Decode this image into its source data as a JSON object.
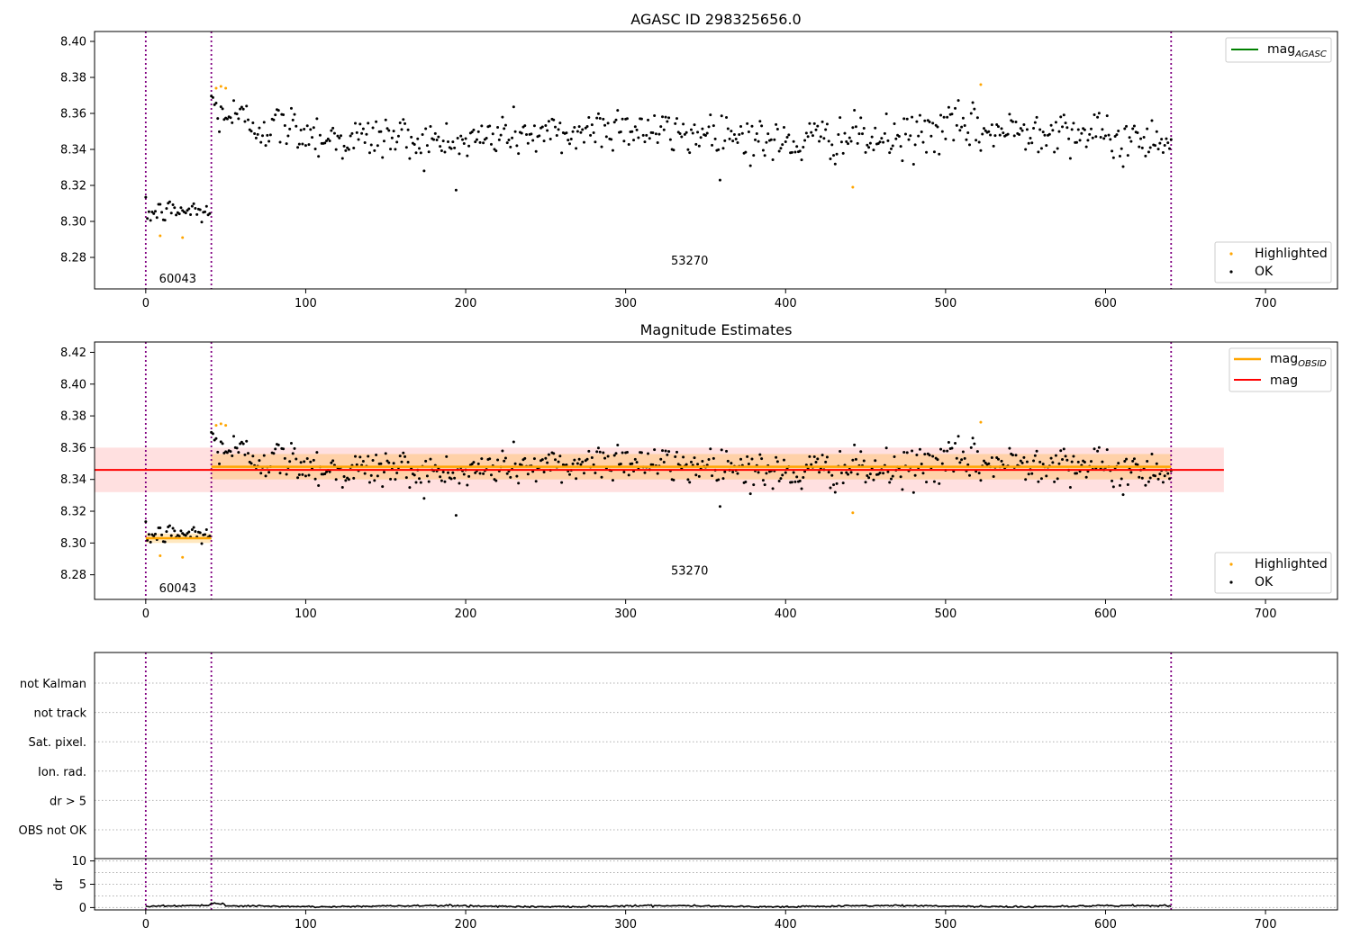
{
  "chart_data": [
    {
      "type": "scatter",
      "title": "AGASC ID 298325656.0",
      "xlim": [
        -32,
        745
      ],
      "ylim": [
        8.2625,
        8.4055
      ],
      "xticks": [
        "0",
        "100",
        "200",
        "300",
        "400",
        "500",
        "600",
        "700"
      ],
      "yticks": [
        "8.28",
        "8.30",
        "8.32",
        "8.34",
        "8.36",
        "8.38",
        "8.40"
      ],
      "obsid_bounds": [
        0,
        41,
        641
      ],
      "obsid_labels": [
        {
          "text": "60043",
          "x": 20,
          "y": 8.266
        },
        {
          "text": "53270",
          "x": 340,
          "y": 8.276
        }
      ],
      "legend_lines": [
        {
          "label": "mag",
          "sub": "AGASC",
          "color": "#008000"
        }
      ],
      "legend_points": [
        {
          "label": "Highlighted",
          "color": "#ffa500"
        },
        {
          "label": "OK",
          "color": "#000000"
        }
      ],
      "series": [
        {
          "name": "OK",
          "color": "#000000",
          "segments": [
            {
              "x0": 0,
              "x1": 40,
              "mean": 8.304,
              "noise": 0.004
            },
            {
              "x0": 41,
              "x1": 641,
              "mean": 8.348,
              "noise": 0.0075
            }
          ]
        },
        {
          "name": "Highlighted",
          "color": "#ffa500",
          "x": [
            9,
            23,
            44,
            47,
            50,
            442,
            522
          ],
          "y": [
            8.292,
            8.291,
            8.374,
            8.375,
            8.374,
            8.319,
            8.376
          ]
        }
      ]
    },
    {
      "type": "scatter",
      "title": "Magnitude Estimates",
      "xlim": [
        -32,
        745
      ],
      "ylim": [
        8.2645,
        8.4265
      ],
      "xticks": [
        "0",
        "100",
        "200",
        "300",
        "400",
        "500",
        "600",
        "700"
      ],
      "yticks": [
        "8.28",
        "8.30",
        "8.32",
        "8.34",
        "8.36",
        "8.38",
        "8.40",
        "8.42"
      ],
      "obsid_bounds": [
        0,
        41,
        641
      ],
      "obsid_labels": [
        {
          "text": "60043",
          "x": 20,
          "y": 8.269
        },
        {
          "text": "53270",
          "x": 340,
          "y": 8.28
        }
      ],
      "mag": {
        "value": 8.346,
        "band": [
          8.332,
          8.36
        ],
        "x0": -32,
        "x1": 674,
        "color": "#ff0000"
      },
      "mag_obsid": [
        {
          "x0": 0,
          "x1": 41,
          "value": 8.303,
          "band": [
            8.3,
            8.306
          ]
        },
        {
          "x0": 41,
          "x1": 641,
          "value": 8.348,
          "band": [
            8.34,
            8.356
          ]
        }
      ],
      "legend_lines": [
        {
          "label": "mag",
          "sub": "OBSID",
          "color": "#ffa500"
        },
        {
          "label": "mag",
          "sub": "",
          "color": "#ff0000"
        }
      ],
      "legend_points": [
        {
          "label": "Highlighted",
          "color": "#ffa500"
        },
        {
          "label": "OK",
          "color": "#000000"
        }
      ],
      "series": [
        {
          "name": "OK",
          "color": "#000000",
          "same_as_panel": 0
        },
        {
          "name": "Highlighted",
          "color": "#ffa500",
          "x": [
            9,
            23,
            44,
            47,
            50,
            442,
            522
          ],
          "y": [
            8.292,
            8.291,
            8.374,
            8.375,
            8.374,
            8.319,
            8.376
          ]
        }
      ]
    },
    {
      "type": "table",
      "categories": [
        "not Kalman",
        "not track",
        "Sat. pixel.",
        "Ion. rad.",
        "dr > 5",
        "OBS not OK"
      ],
      "xlim": [
        -32,
        745
      ],
      "obsid_bounds": [
        0,
        41,
        641
      ]
    },
    {
      "type": "line",
      "ylabel": "dr",
      "xlim": [
        -32,
        745
      ],
      "ylim": [
        -0.5,
        10.5
      ],
      "xticks": [
        "0",
        "100",
        "200",
        "300",
        "400",
        "500",
        "600",
        "700"
      ],
      "yticks": [
        "0",
        "5",
        "10"
      ],
      "obsid_bounds": [
        0,
        41,
        641
      ],
      "series": [
        {
          "name": "dr",
          "color": "#000000",
          "x0": 0,
          "x1": 641,
          "mean": 0.3,
          "noise": 0.15
        }
      ]
    }
  ]
}
